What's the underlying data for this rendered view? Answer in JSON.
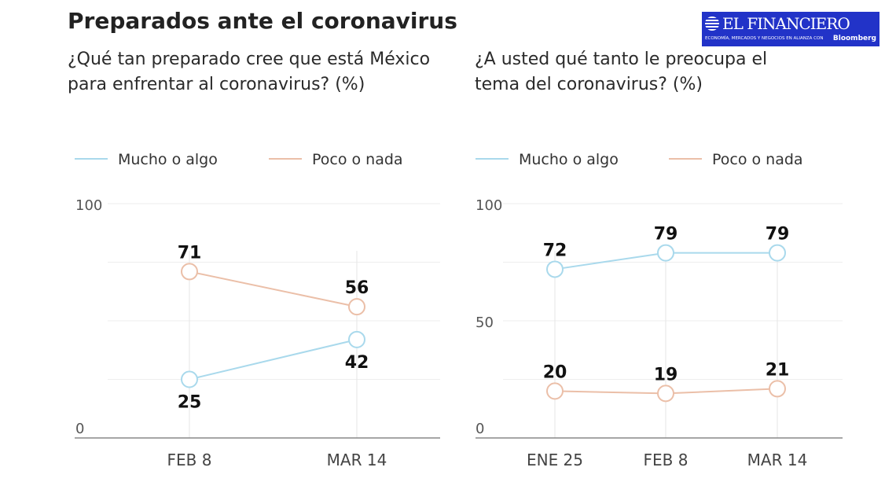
{
  "title": "Preparados ante el coronavirus",
  "logo": {
    "name": "EL FINANCIERO",
    "tagline": "ECONOMÍA, MERCADOS Y NEGOCIOS EN ALIANZA CON",
    "partner": "Bloomberg",
    "color": "#2233c8"
  },
  "chart_data": [
    {
      "type": "line",
      "title": "¿Qué tan preparado cree que está México para enfrentar al coronavirus? (%)",
      "categories": [
        "FEB 8",
        "MAR 14"
      ],
      "ylim": [
        0,
        100
      ],
      "yticks": [
        0,
        100
      ],
      "grid": true,
      "legend": "top",
      "series": [
        {
          "name": "Mucho o algo",
          "color": "#a9d9ec",
          "values": [
            25,
            42
          ]
        },
        {
          "name": "Poco o nada",
          "color": "#ebbfa8",
          "values": [
            71,
            56
          ]
        }
      ]
    },
    {
      "type": "line",
      "title": "¿A usted qué tanto le preocupa el tema del coronavirus? (%)",
      "categories": [
        "ENE 25",
        "FEB 8",
        "MAR 14"
      ],
      "ylim": [
        0,
        100
      ],
      "yticks": [
        0,
        50,
        100
      ],
      "grid": true,
      "legend": "top",
      "series": [
        {
          "name": "Mucho o algo",
          "color": "#a9d9ec",
          "values": [
            72,
            79,
            79
          ]
        },
        {
          "name": "Poco o nada",
          "color": "#ebbfa8",
          "values": [
            20,
            19,
            21
          ]
        }
      ]
    }
  ]
}
